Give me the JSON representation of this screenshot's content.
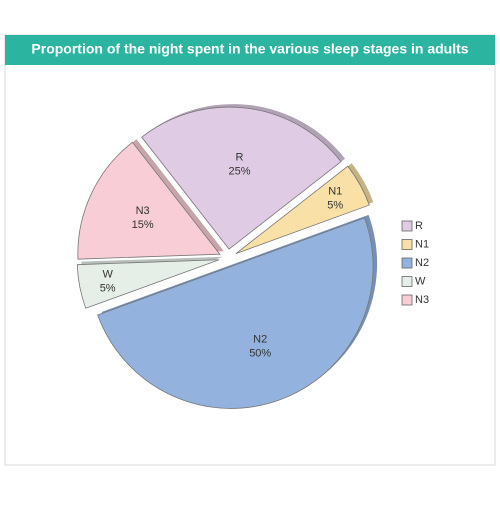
{
  "chart_data": {
    "type": "pie",
    "title": "Proportion of the night spent in the various sleep stages in adults",
    "categories": [
      "R",
      "N1",
      "N2",
      "W",
      "N3"
    ],
    "values": [
      25,
      5,
      50,
      5,
      15
    ],
    "value_labels": [
      "25%",
      "5%",
      "50%",
      "5%",
      "15%"
    ],
    "colors": [
      "#dfcbe3",
      "#f8e0a6",
      "#93b3de",
      "#e6eee8",
      "#f8cdd5"
    ],
    "legend": "right"
  }
}
